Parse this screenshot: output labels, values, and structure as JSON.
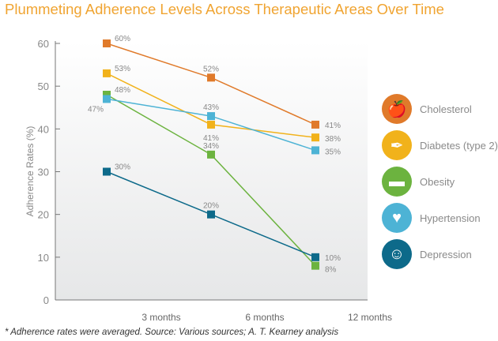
{
  "title": "Plummeting Adherence Levels Across Therapeutic Areas Over Time",
  "footnote": "* Adherence rates were averaged. Source: Various sources; A. T. Kearney analysis",
  "chart_data": {
    "type": "line",
    "title": "Plummeting Adherence Levels Across Therapeutic Areas Over Time",
    "ylabel": "Adherence Rates (%)",
    "xlabel": "",
    "ylim": [
      0,
      60
    ],
    "yticks": [
      "0",
      "10",
      "20",
      "30",
      "40",
      "50",
      "60"
    ],
    "categories": [
      "3 months",
      "6 months",
      "12 months"
    ],
    "grid": false,
    "legend_placement": "right",
    "series": [
      {
        "name": "Cholesterol",
        "color": "#e07a2a",
        "icon": "apple-icon",
        "values": [
          60,
          52,
          41
        ],
        "labels": [
          "60%",
          "52%",
          "41%"
        ]
      },
      {
        "name": "Diabetes (type 2)",
        "color": "#f1b21b",
        "icon": "syringe-icon",
        "values": [
          53,
          41,
          38
        ],
        "labels": [
          "53%",
          "41%",
          "38%"
        ]
      },
      {
        "name": "Obesity",
        "color": "#6cb33f",
        "icon": "tape-measure-icon",
        "values": [
          48,
          34,
          8
        ],
        "labels": [
          "48%",
          "34%",
          "8%"
        ]
      },
      {
        "name": "Hypertension",
        "color": "#4db3d5",
        "icon": "heart-pulse-icon",
        "values": [
          47,
          43,
          35
        ],
        "labels": [
          "47%",
          "43%",
          "35%"
        ]
      },
      {
        "name": "Depression",
        "color": "#0d6a8a",
        "icon": "head-brain-icon",
        "values": [
          30,
          20,
          10
        ],
        "labels": [
          "30%",
          "20%",
          "10%"
        ]
      }
    ]
  }
}
